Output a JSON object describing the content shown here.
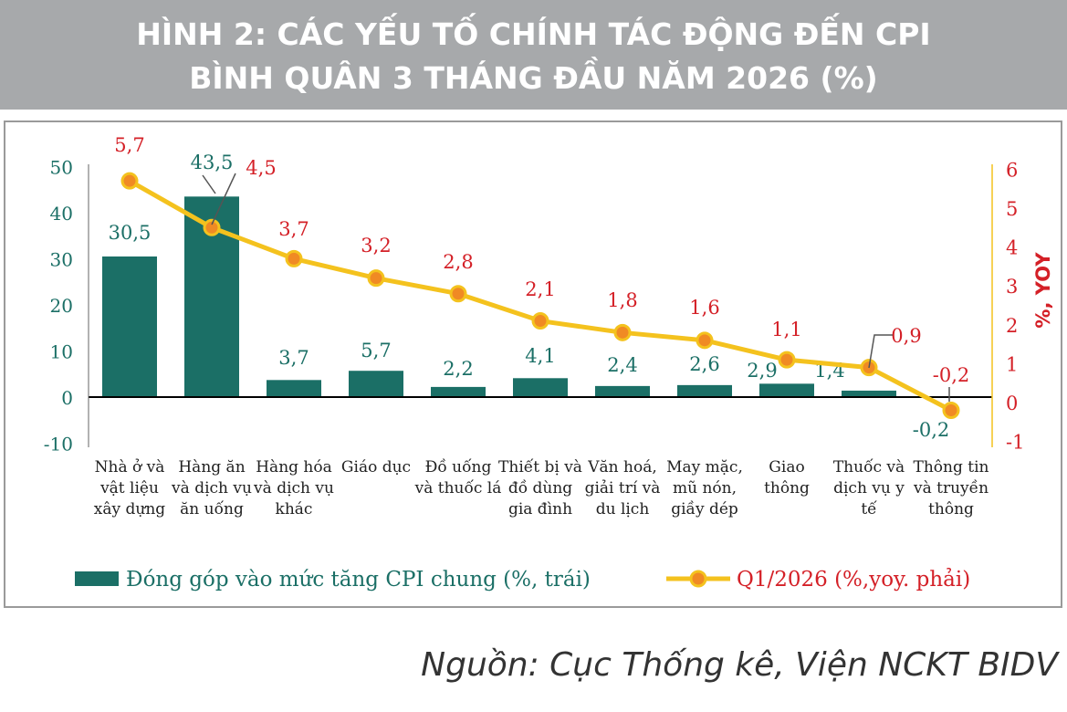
{
  "title_line1": "HÌNH 2: CÁC YẾU TỐ CHÍNH TÁC ĐỘNG ĐẾN CPI",
  "title_line2": "BÌNH QUÂN 3 THÁNG ĐẦU NĂM 2026 (%)",
  "source": "Nguồn: Cục Thống kê, Viện NCKT BIDV",
  "colors": {
    "bar": "#1b6f66",
    "line": "#f4c21e",
    "marker": "#f08a24",
    "left_axis": "#1b6f66",
    "right_axis": "#d42027",
    "title_bg": "#a7a9ab"
  },
  "chart_data": {
    "type": "bar+line",
    "categories": [
      [
        "Nhà ở và",
        "vật liệu",
        "xây dựng"
      ],
      [
        "Hàng ăn",
        "và dịch vụ",
        "ăn uống"
      ],
      [
        "Hàng hóa",
        "và dịch vụ",
        "khác"
      ],
      [
        "Giáo dục"
      ],
      [
        "Đồ uống",
        "và thuốc lá"
      ],
      [
        "Thiết bị và",
        "đồ dùng",
        "gia đình"
      ],
      [
        "Văn hoá,",
        "giải trí và",
        "du lịch"
      ],
      [
        "May mặc,",
        "mũ nón,",
        "giầy dép"
      ],
      [
        "Giao",
        "thông"
      ],
      [
        "Thuốc và",
        "dịch vụ y",
        "tế"
      ],
      [
        "Thông tin",
        "và truyền",
        "thông"
      ]
    ],
    "series": [
      {
        "name": "Đóng góp vào mức tăng CPI chung (%, trái)",
        "type": "bar",
        "axis": "left",
        "values": [
          30.5,
          43.5,
          3.7,
          5.7,
          2.2,
          4.1,
          2.4,
          2.6,
          2.9,
          1.4,
          -0.2
        ],
        "labels": [
          "30,5",
          "43,5",
          "3,7",
          "5,7",
          "2,2",
          "4,1",
          "2,4",
          "2,6",
          "2,9",
          "1,4",
          "-0,2"
        ]
      },
      {
        "name": "Q1/2026 (%,yoy. phải)",
        "type": "line",
        "axis": "right",
        "values": [
          5.7,
          4.5,
          3.7,
          3.2,
          2.8,
          2.1,
          1.8,
          1.6,
          1.1,
          0.9,
          -0.2
        ],
        "labels": [
          "5,7",
          "4,5",
          "3,7",
          "3,2",
          "2,8",
          "2,1",
          "1,8",
          "1,6",
          "1,1",
          "0,9",
          "-0,2"
        ]
      }
    ],
    "left_axis": {
      "ylim": [
        -10,
        50
      ],
      "ticks": [
        "50",
        "40",
        "30",
        "20",
        "10",
        "0",
        "-10"
      ],
      "tick_values": [
        50,
        40,
        30,
        20,
        10,
        0,
        -10
      ]
    },
    "right_axis": {
      "label": "%, YOY",
      "ylim": [
        -1,
        6
      ],
      "ticks": [
        "6",
        "5",
        "4",
        "3",
        "2",
        "1",
        "0",
        "-1"
      ],
      "tick_values": [
        6,
        5,
        4,
        3,
        2,
        1,
        0,
        -1
      ]
    },
    "legend_position": "bottom"
  }
}
